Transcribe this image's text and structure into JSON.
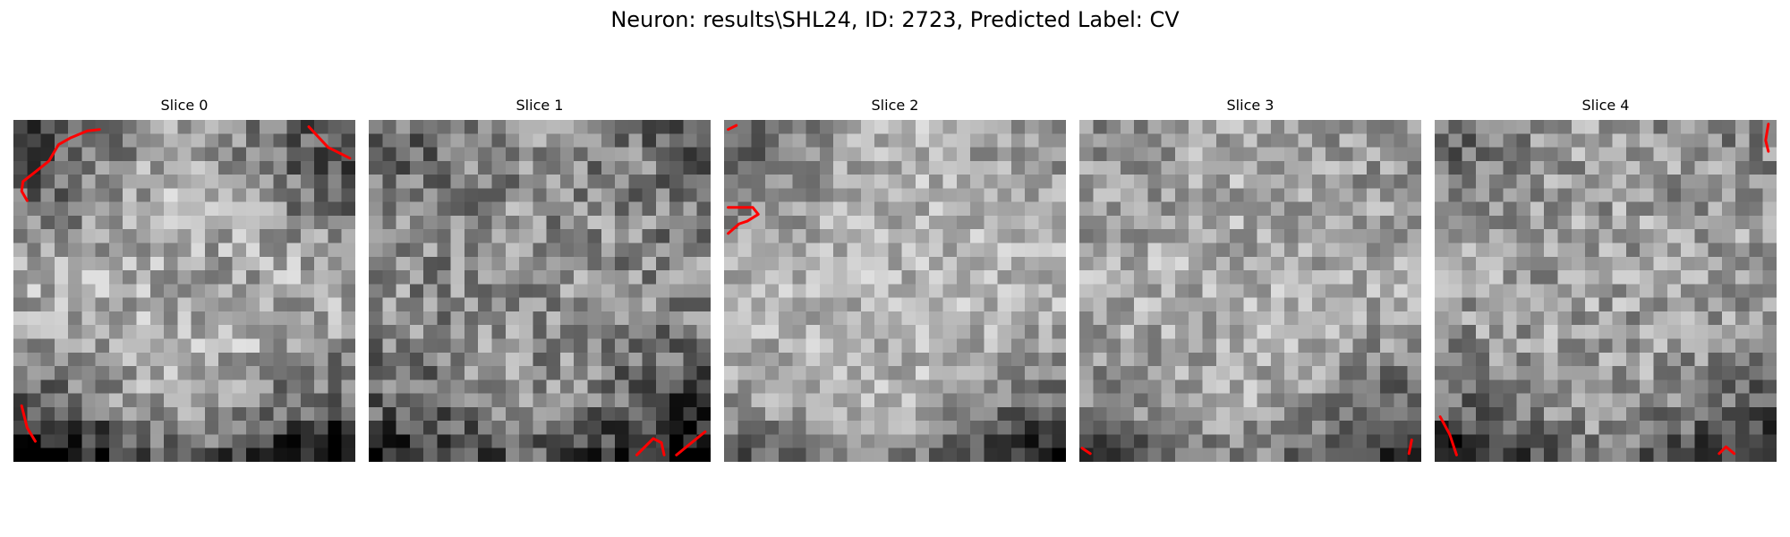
{
  "figure": {
    "title": "Neuron: results\\SHL24, ID: 2723, Predicted Label: CV"
  },
  "contour_color": "#ff0000",
  "slices": [
    {
      "title": "Slice 0",
      "contours": [
        [
          [
            1,
            5.9
          ],
          [
            0.6,
            5.2
          ],
          [
            0.7,
            4.5
          ],
          [
            1.6,
            3.8
          ],
          [
            2.6,
            3.0
          ],
          [
            3.3,
            1.8
          ],
          [
            4.2,
            1.3
          ],
          [
            5.4,
            0.8
          ],
          [
            6.3,
            0.7
          ]
        ],
        [
          [
            21.6,
            0.5
          ],
          [
            23.0,
            2.0
          ],
          [
            24.6,
            2.8
          ]
        ],
        [
          [
            0.6,
            20.9
          ],
          [
            1,
            22.5
          ],
          [
            1.6,
            23.5
          ]
        ]
      ]
    },
    {
      "title": "Slice 1",
      "contours": [
        [
          [
            19.6,
            24.5
          ],
          [
            20.8,
            23.3
          ],
          [
            21.4,
            23.6
          ],
          [
            21.6,
            24.5
          ]
        ],
        [
          [
            22.5,
            24.5
          ],
          [
            24.6,
            22.8
          ]
        ]
      ]
    },
    {
      "title": "Slice 2",
      "contours": [
        [
          [
            0.3,
            0.7
          ],
          [
            0.9,
            0.4
          ]
        ],
        [
          [
            0.3,
            6.4
          ],
          [
            2.1,
            6.4
          ],
          [
            2.5,
            6.9
          ],
          [
            1.7,
            7.4
          ],
          [
            1.1,
            7.6
          ],
          [
            0.3,
            8.3
          ]
        ]
      ]
    },
    {
      "title": "Slice 3",
      "contours": [
        [
          [
            0.2,
            24.0
          ],
          [
            0.8,
            24.4
          ]
        ],
        [
          [
            24.1,
            24.4
          ],
          [
            24.3,
            23.4
          ]
        ]
      ]
    },
    {
      "title": "Slice 4",
      "contours": [
        [
          [
            24.4,
            0.3
          ],
          [
            24.2,
            1.5
          ],
          [
            24.4,
            2.3
          ]
        ],
        [
          [
            0.4,
            21.7
          ],
          [
            1.1,
            23.0
          ],
          [
            1.6,
            24.5
          ]
        ],
        [
          [
            20.8,
            24.4
          ],
          [
            21.3,
            23.9
          ],
          [
            21.9,
            24.4
          ]
        ]
      ]
    }
  ]
}
